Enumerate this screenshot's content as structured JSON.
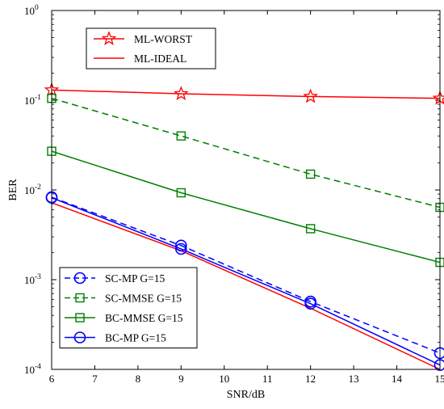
{
  "chart_data": {
    "type": "line",
    "title": "",
    "xlabel": "SNR/dB",
    "ylabel": "BER",
    "xlim": [
      6,
      15
    ],
    "ylim": [
      0.0001,
      1
    ],
    "yscale": "log",
    "grid": false,
    "x_ticks": [
      "6",
      "7",
      "8",
      "9",
      "10",
      "11",
      "12",
      "13",
      "14",
      "15"
    ],
    "y_ticks": [
      {
        "value": 0.0001,
        "base": "10",
        "exp": "-4"
      },
      {
        "value": 0.001,
        "base": "10",
        "exp": "-3"
      },
      {
        "value": 0.01,
        "base": "10",
        "exp": "-2"
      },
      {
        "value": 0.1,
        "base": "10",
        "exp": "-1"
      },
      {
        "value": 1,
        "base": "10",
        "exp": "0"
      }
    ],
    "x": [
      6,
      9,
      12,
      15
    ],
    "series": [
      {
        "name": "ML-WORST",
        "color": "#ff0000",
        "dash": "solid",
        "marker": "star",
        "values": [
          0.13,
          0.118,
          0.11,
          0.105
        ]
      },
      {
        "name": "ML-IDEAL",
        "color": "#ff0000",
        "dash": "solid",
        "marker": "none",
        "values": [
          0.0072,
          0.0021,
          0.00048,
          0.0001
        ]
      },
      {
        "name": "SC-MP G=15",
        "color": "#0000ff",
        "dash": "dashed",
        "marker": "circle",
        "values": [
          0.0083,
          0.0024,
          0.00057,
          0.000152
        ]
      },
      {
        "name": "SC-MMSE G=15",
        "color": "#008000",
        "dash": "dashed",
        "marker": "square",
        "values": [
          0.105,
          0.04,
          0.015,
          0.0064
        ]
      },
      {
        "name": "BC-MMSE G=15",
        "color": "#008000",
        "dash": "solid",
        "marker": "square",
        "values": [
          0.027,
          0.0093,
          0.0037,
          0.00156
        ]
      },
      {
        "name": "BC-MP G=15",
        "color": "#0000ff",
        "dash": "solid",
        "marker": "circle",
        "values": [
          0.0082,
          0.0022,
          0.00054,
          0.000112
        ]
      }
    ],
    "legends": [
      {
        "position": "top-left",
        "entries": [
          "ML-WORST",
          "ML-IDEAL"
        ]
      },
      {
        "position": "bottom-left",
        "entries": [
          "SC-MP G=15",
          "SC-MMSE G=15",
          "BC-MMSE G=15",
          "BC-MP G=15"
        ]
      }
    ]
  }
}
